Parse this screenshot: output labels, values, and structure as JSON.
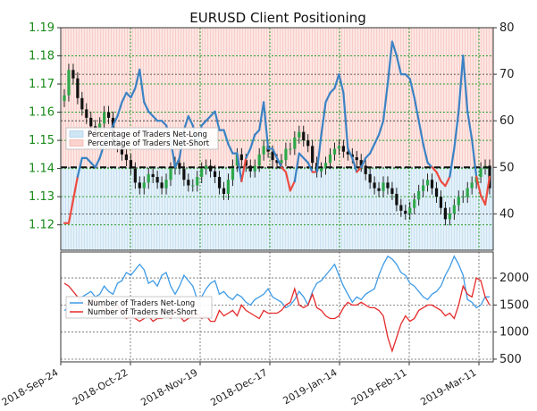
{
  "chart_data": {
    "title": "EURUSD Client Positioning",
    "type": "line",
    "x_tick_labels": [
      "2018-Sep-24",
      "2018-Oct-22",
      "2018-Nov-19",
      "2018-Dec-17",
      "2019-Jan-14",
      "2019-Feb-11",
      "2019-Mar-11"
    ],
    "top_panel": {
      "left_axis": {
        "ticks": [
          1.12,
          1.13,
          1.14,
          1.15,
          1.16,
          1.17,
          1.18,
          1.19
        ],
        "ylim": [
          1.111,
          1.19
        ]
      },
      "right_axis": {
        "ticks": [
          40,
          50,
          60,
          70,
          80
        ],
        "ylim": [
          32.2,
          80
        ]
      },
      "reference_line": 50,
      "legend": [
        "Percentage of Traders Net-Long",
        "Percentage of Traders Net-Short"
      ],
      "legend_position": "left",
      "grid": true,
      "long_pct": [
        38,
        38,
        43,
        48,
        52,
        52,
        51,
        50,
        52,
        55,
        57,
        59,
        61,
        64,
        66,
        65,
        67,
        71,
        64,
        62,
        61,
        60,
        60,
        59,
        56,
        50,
        52,
        58,
        61,
        59,
        55,
        59,
        60,
        61,
        62,
        58,
        58,
        55,
        53,
        53,
        47,
        52,
        54,
        57,
        58,
        64,
        54,
        54,
        52,
        50,
        49,
        45,
        47,
        53,
        52,
        51,
        49,
        49,
        57,
        64,
        66,
        67,
        70,
        66,
        54,
        52,
        49,
        50,
        52,
        53,
        55,
        57,
        60,
        68,
        77,
        74,
        70,
        70,
        69,
        65,
        60,
        55,
        51,
        50,
        49,
        47,
        46,
        48,
        54,
        62,
        74,
        62,
        56,
        48,
        44,
        42,
        48
      ],
      "price_close": [
        1.166,
        1.175,
        1.172,
        1.165,
        1.161,
        1.158,
        1.155,
        1.153,
        1.156,
        1.16,
        1.158,
        1.15,
        1.148,
        1.145,
        1.143,
        1.14,
        1.135,
        1.133,
        1.135,
        1.138,
        1.137,
        1.135,
        1.133,
        1.136,
        1.14,
        1.142,
        1.14,
        1.136,
        1.134,
        1.134,
        1.137,
        1.14,
        1.141,
        1.139,
        1.137,
        1.133,
        1.131,
        1.136,
        1.141,
        1.145,
        1.143,
        1.141,
        1.139,
        1.141,
        1.145,
        1.148,
        1.146,
        1.143,
        1.142,
        1.143,
        1.147,
        1.147,
        1.151,
        1.153,
        1.15,
        1.148,
        1.142,
        1.139,
        1.14,
        1.142,
        1.145,
        1.147,
        1.148,
        1.146,
        1.145,
        1.144,
        1.143,
        1.141,
        1.138,
        1.135,
        1.133,
        1.132,
        1.135,
        1.133,
        1.131,
        1.127,
        1.125,
        1.124,
        1.126,
        1.129,
        1.132,
        1.134,
        1.136,
        1.133,
        1.13,
        1.126,
        1.122,
        1.124,
        1.127,
        1.13,
        1.13,
        1.133,
        1.135,
        1.137,
        1.14,
        1.141,
        1.133
      ]
    },
    "bottom_panel": {
      "right_axis": {
        "ticks": [
          500,
          1000,
          1500,
          2000
        ],
        "ylim": [
          450,
          2480
        ]
      },
      "legend": [
        "Number of Traders Net-Long",
        "Number of Traders Net-Short"
      ],
      "legend_position": "left",
      "grid": true,
      "net_long": [
        1400,
        1450,
        1500,
        1550,
        1650,
        1700,
        1750,
        1650,
        1700,
        1850,
        1750,
        1700,
        1900,
        1950,
        2100,
        2050,
        2150,
        2250,
        2150,
        1900,
        1950,
        1850,
        2050,
        2100,
        1850,
        1700,
        1850,
        2050,
        1950,
        1850,
        1600,
        1650,
        1800,
        1900,
        1950,
        1700,
        1750,
        1650,
        1600,
        1700,
        1650,
        1550,
        1500,
        1600,
        1650,
        1700,
        1800,
        1650,
        1600,
        1550,
        1450,
        1500,
        1600,
        1750,
        1650,
        1500,
        1750,
        1900,
        1950,
        2050,
        2150,
        2250,
        2050,
        1850,
        1700,
        1550,
        1650,
        1600,
        1700,
        1750,
        1800,
        2050,
        2250,
        2400,
        2350,
        2250,
        2100,
        2050,
        1900,
        1850,
        1750,
        1650,
        1600,
        1700,
        1750,
        1850,
        2050,
        2200,
        2400,
        2250,
        2050,
        1600,
        1550,
        1450,
        1500,
        1650,
        1650
      ],
      "net_short": [
        1900,
        1850,
        1750,
        1650,
        1550,
        1500,
        1550,
        1600,
        1500,
        1400,
        1350,
        1450,
        1500,
        1350,
        1250,
        1300,
        1250,
        1200,
        1250,
        1300,
        1200,
        1250,
        1250,
        1300,
        1250,
        1400,
        1300,
        1200,
        1250,
        1300,
        1350,
        1250,
        1300,
        1200,
        1200,
        1400,
        1300,
        1350,
        1400,
        1300,
        1500,
        1400,
        1350,
        1300,
        1250,
        1400,
        1350,
        1350,
        1350,
        1400,
        1500,
        1550,
        1800,
        1500,
        1450,
        1500,
        1700,
        1450,
        1400,
        1300,
        1250,
        1250,
        1300,
        1450,
        1550,
        1500,
        1500,
        1550,
        1500,
        1450,
        1450,
        1400,
        1300,
        900,
        650,
        900,
        1150,
        1300,
        1200,
        1250,
        1400,
        1450,
        1500,
        1500,
        1450,
        1400,
        1300,
        1350,
        1250,
        1500,
        1850,
        1700,
        1650,
        2000,
        1950,
        1650,
        1500
      ]
    },
    "colors": {
      "long": "#3a82c4",
      "short": "#ee4b40",
      "long_fill": "#d6ebf7",
      "short_fill": "#fde3e0",
      "green_axis": "#1a8a1a",
      "grid": "#2e9e2e"
    }
  }
}
